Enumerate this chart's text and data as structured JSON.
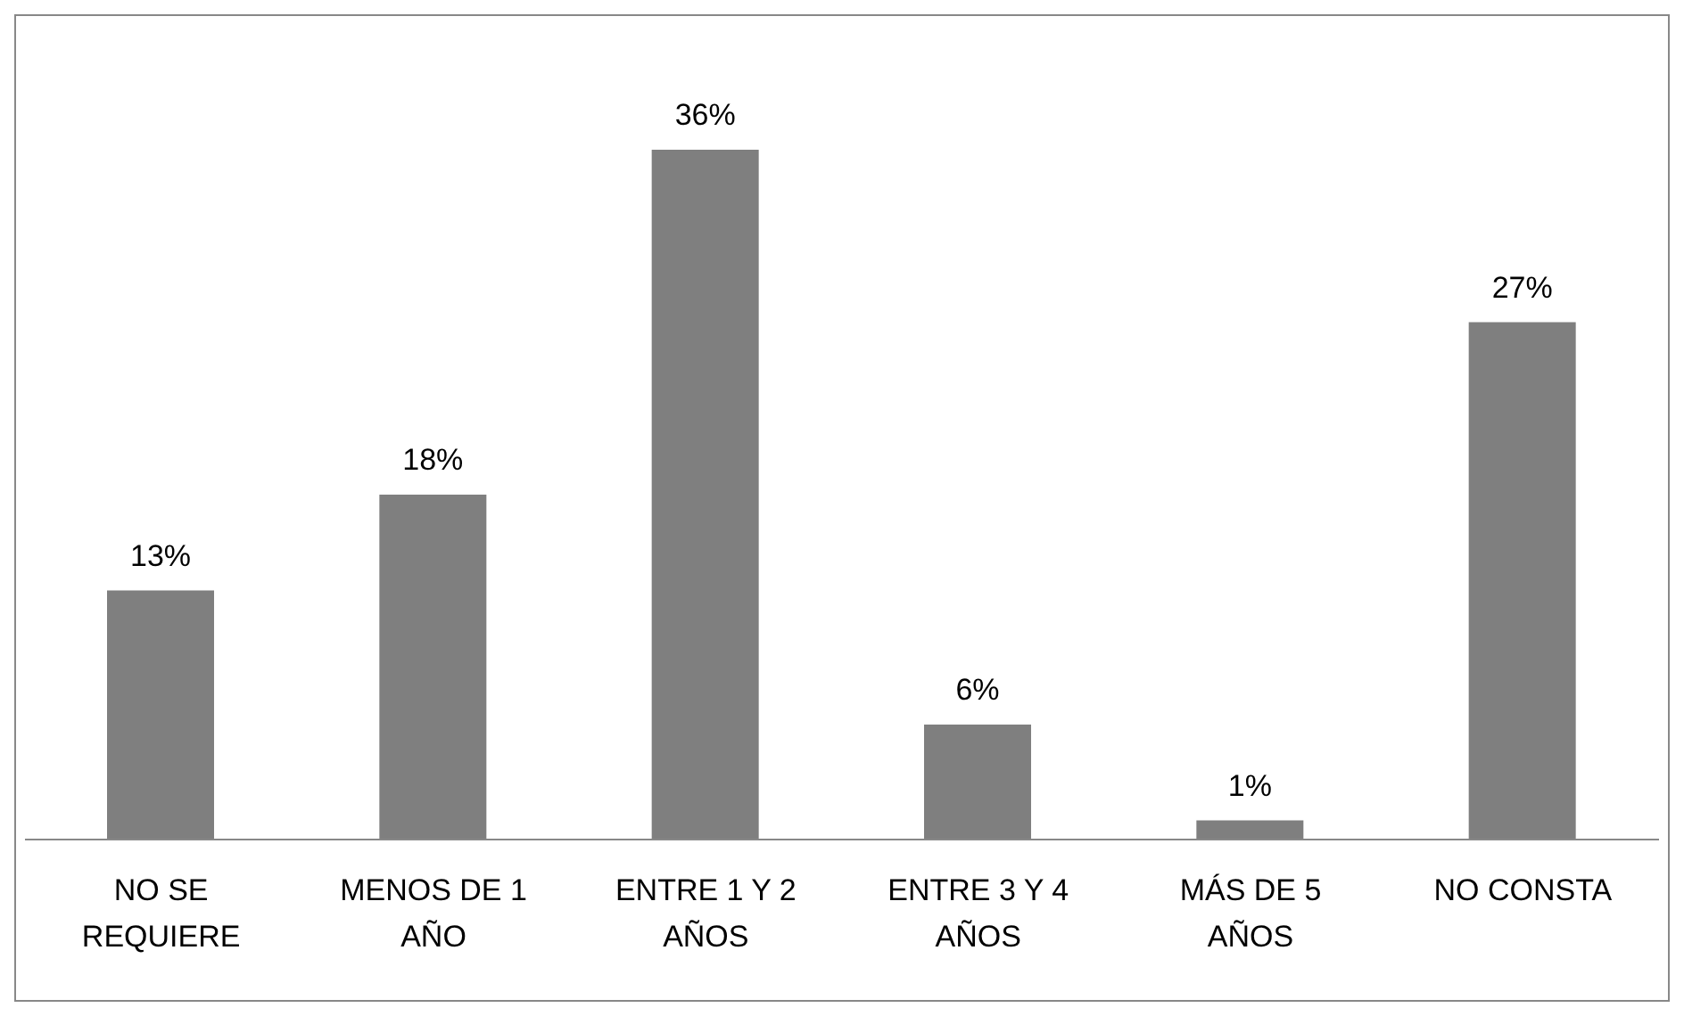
{
  "chart_data": {
    "type": "bar",
    "categories": [
      "NO SE REQUIERE",
      "MENOS DE 1 AÑO",
      "ENTRE 1 Y 2 AÑOS",
      "ENTRE 3 Y 4 AÑOS",
      "MÁS DE 5 AÑOS",
      "NO CONSTA"
    ],
    "values": [
      13,
      18,
      36,
      6,
      1,
      27
    ],
    "value_labels": [
      "13%",
      "18%",
      "36%",
      "6%",
      "1%",
      "27%"
    ],
    "color": "#7f7f7f"
  }
}
